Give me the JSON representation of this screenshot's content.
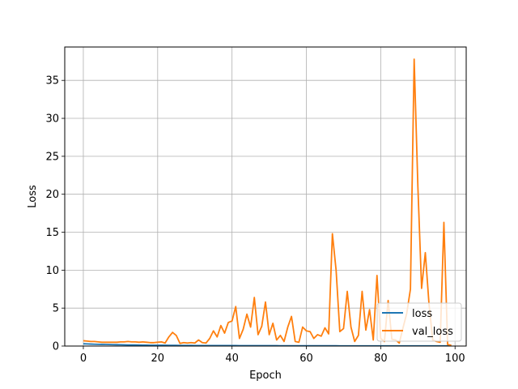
{
  "chart_data": {
    "type": "line",
    "title": "",
    "xlabel": "Epoch",
    "ylabel": "Loss",
    "xlim": [
      -5,
      103
    ],
    "ylim": [
      0,
      39.4
    ],
    "xticks": [
      0,
      20,
      40,
      60,
      80,
      100
    ],
    "yticks": [
      0,
      5,
      10,
      15,
      20,
      25,
      30,
      35
    ],
    "xtick_labels": [
      "0",
      "20",
      "40",
      "60",
      "80",
      "100"
    ],
    "ytick_labels": [
      "0",
      "5",
      "10",
      "15",
      "20",
      "25",
      "30",
      "35"
    ],
    "grid": true,
    "legend_location": "lower-right",
    "x": [
      0,
      1,
      2,
      3,
      4,
      5,
      6,
      7,
      8,
      9,
      10,
      11,
      12,
      13,
      14,
      15,
      16,
      17,
      18,
      19,
      20,
      21,
      22,
      23,
      24,
      25,
      26,
      27,
      28,
      29,
      30,
      31,
      32,
      33,
      34,
      35,
      36,
      37,
      38,
      39,
      40,
      41,
      42,
      43,
      44,
      45,
      46,
      47,
      48,
      49,
      50,
      51,
      52,
      53,
      54,
      55,
      56,
      57,
      58,
      59,
      60,
      61,
      62,
      63,
      64,
      65,
      66,
      67,
      68,
      69,
      70,
      71,
      72,
      73,
      74,
      75,
      76,
      77,
      78,
      79,
      80,
      81,
      82,
      83,
      84,
      85,
      86,
      87,
      88,
      89,
      90,
      91,
      92,
      93,
      94,
      95,
      96,
      97,
      98,
      99
    ],
    "series": [
      {
        "name": "loss",
        "color": "#1f77b4",
        "values": [
          0.3,
          0.28,
          0.26,
          0.24,
          0.23,
          0.22,
          0.21,
          0.2,
          0.19,
          0.18,
          0.17,
          0.16,
          0.15,
          0.14,
          0.14,
          0.13,
          0.12,
          0.12,
          0.11,
          0.11,
          0.1,
          0.1,
          0.1,
          0.09,
          0.09,
          0.09,
          0.08,
          0.08,
          0.08,
          0.08,
          0.07,
          0.07,
          0.07,
          0.07,
          0.07,
          0.06,
          0.06,
          0.06,
          0.06,
          0.06,
          0.06,
          0.06,
          0.05,
          0.05,
          0.05,
          0.05,
          0.05,
          0.05,
          0.05,
          0.05,
          0.05,
          0.05,
          0.05,
          0.04,
          0.04,
          0.04,
          0.04,
          0.04,
          0.04,
          0.04,
          0.04,
          0.04,
          0.04,
          0.04,
          0.04,
          0.04,
          0.04,
          0.04,
          0.04,
          0.03,
          0.03,
          0.03,
          0.03,
          0.03,
          0.03,
          0.03,
          0.03,
          0.03,
          0.03,
          0.03,
          0.03,
          0.03,
          0.03,
          0.03,
          0.03,
          0.03,
          0.03,
          0.03,
          0.03,
          0.03,
          0.03,
          0.03,
          0.03,
          0.03,
          0.03,
          0.03,
          0.03,
          0.03,
          0.03,
          0.03
        ]
      },
      {
        "name": "val_loss",
        "color": "#ff7f0e",
        "values": [
          0.7,
          0.65,
          0.6,
          0.6,
          0.55,
          0.5,
          0.5,
          0.5,
          0.5,
          0.5,
          0.55,
          0.55,
          0.6,
          0.55,
          0.55,
          0.5,
          0.55,
          0.5,
          0.45,
          0.45,
          0.5,
          0.55,
          0.4,
          1.2,
          1.8,
          1.4,
          0.35,
          0.45,
          0.4,
          0.45,
          0.4,
          0.8,
          0.45,
          0.4,
          1.0,
          2.0,
          1.2,
          2.7,
          1.7,
          3.1,
          3.3,
          5.2,
          1.0,
          2.2,
          4.2,
          2.5,
          6.4,
          1.5,
          2.6,
          5.8,
          1.5,
          3.0,
          0.8,
          1.4,
          0.6,
          2.5,
          3.9,
          0.6,
          0.5,
          2.5,
          2.0,
          1.9,
          1.0,
          1.5,
          1.3,
          2.4,
          1.6,
          14.8,
          10.0,
          1.9,
          2.3,
          7.2,
          2.5,
          0.6,
          1.4,
          7.2,
          2.1,
          4.8,
          0.8,
          9.3,
          1.0,
          0.6,
          6.0,
          0.9,
          0.8,
          0.4,
          2.4,
          4.3,
          7.5,
          37.8,
          21.0,
          7.6,
          12.3,
          5.5,
          0.8,
          0.6,
          0.5,
          16.3,
          0.2,
          0.1
        ]
      }
    ]
  }
}
